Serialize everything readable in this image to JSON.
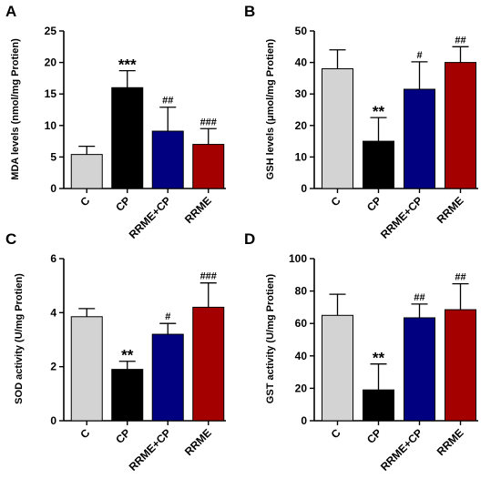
{
  "chart_data": [
    {
      "type": "bar",
      "panel": "A",
      "categories": [
        "C",
        "CP",
        "RRME+CP",
        "RRME"
      ],
      "values": [
        5.4,
        16.0,
        9.1,
        7.0
      ],
      "errors": [
        1.3,
        2.7,
        3.8,
        2.5
      ],
      "significance": [
        "",
        "***",
        "##",
        "###"
      ],
      "colors": [
        "#d3d3d3",
        "#000000",
        "#000080",
        "#a50000"
      ],
      "ylabel": "MDA levels (nmol/mg Protien)",
      "ylim": [
        0,
        25
      ],
      "yticks": [
        0,
        5,
        10,
        15,
        20,
        25
      ]
    },
    {
      "type": "bar",
      "panel": "B",
      "categories": [
        "C",
        "CP",
        "RRME+CP",
        "RRME"
      ],
      "values": [
        38.0,
        15.0,
        31.5,
        40.0
      ],
      "errors": [
        6.0,
        7.5,
        8.7,
        5.0
      ],
      "significance": [
        "",
        "**",
        "#",
        "##"
      ],
      "colors": [
        "#d3d3d3",
        "#000000",
        "#000080",
        "#a50000"
      ],
      "ylabel": "GSH levels (μmol/mg Protien)",
      "ylim": [
        0,
        50
      ],
      "yticks": [
        0,
        10,
        20,
        30,
        40,
        50
      ]
    },
    {
      "type": "bar",
      "panel": "C",
      "categories": [
        "C",
        "CP",
        "RRME+CP",
        "RRME"
      ],
      "values": [
        3.85,
        1.9,
        3.2,
        4.2
      ],
      "errors": [
        0.3,
        0.3,
        0.4,
        0.9
      ],
      "significance": [
        "",
        "**",
        "#",
        "###"
      ],
      "colors": [
        "#d3d3d3",
        "#000000",
        "#000080",
        "#a50000"
      ],
      "ylabel": "SOD activity (U/mg Protien)",
      "ylim": [
        0,
        6
      ],
      "yticks": [
        0,
        2,
        4,
        6
      ]
    },
    {
      "type": "bar",
      "panel": "D",
      "categories": [
        "C",
        "CP",
        "RRME+CP",
        "RRME"
      ],
      "values": [
        65.0,
        19.0,
        63.5,
        68.5
      ],
      "errors": [
        13.0,
        16.0,
        8.5,
        16.0
      ],
      "significance": [
        "",
        "**",
        "##",
        "##"
      ],
      "colors": [
        "#d3d3d3",
        "#000000",
        "#000080",
        "#a50000"
      ],
      "ylabel": "GST activity (U/mg Protien)",
      "ylim": [
        0,
        100
      ],
      "yticks": [
        0,
        20,
        40,
        60,
        80,
        100
      ]
    }
  ]
}
